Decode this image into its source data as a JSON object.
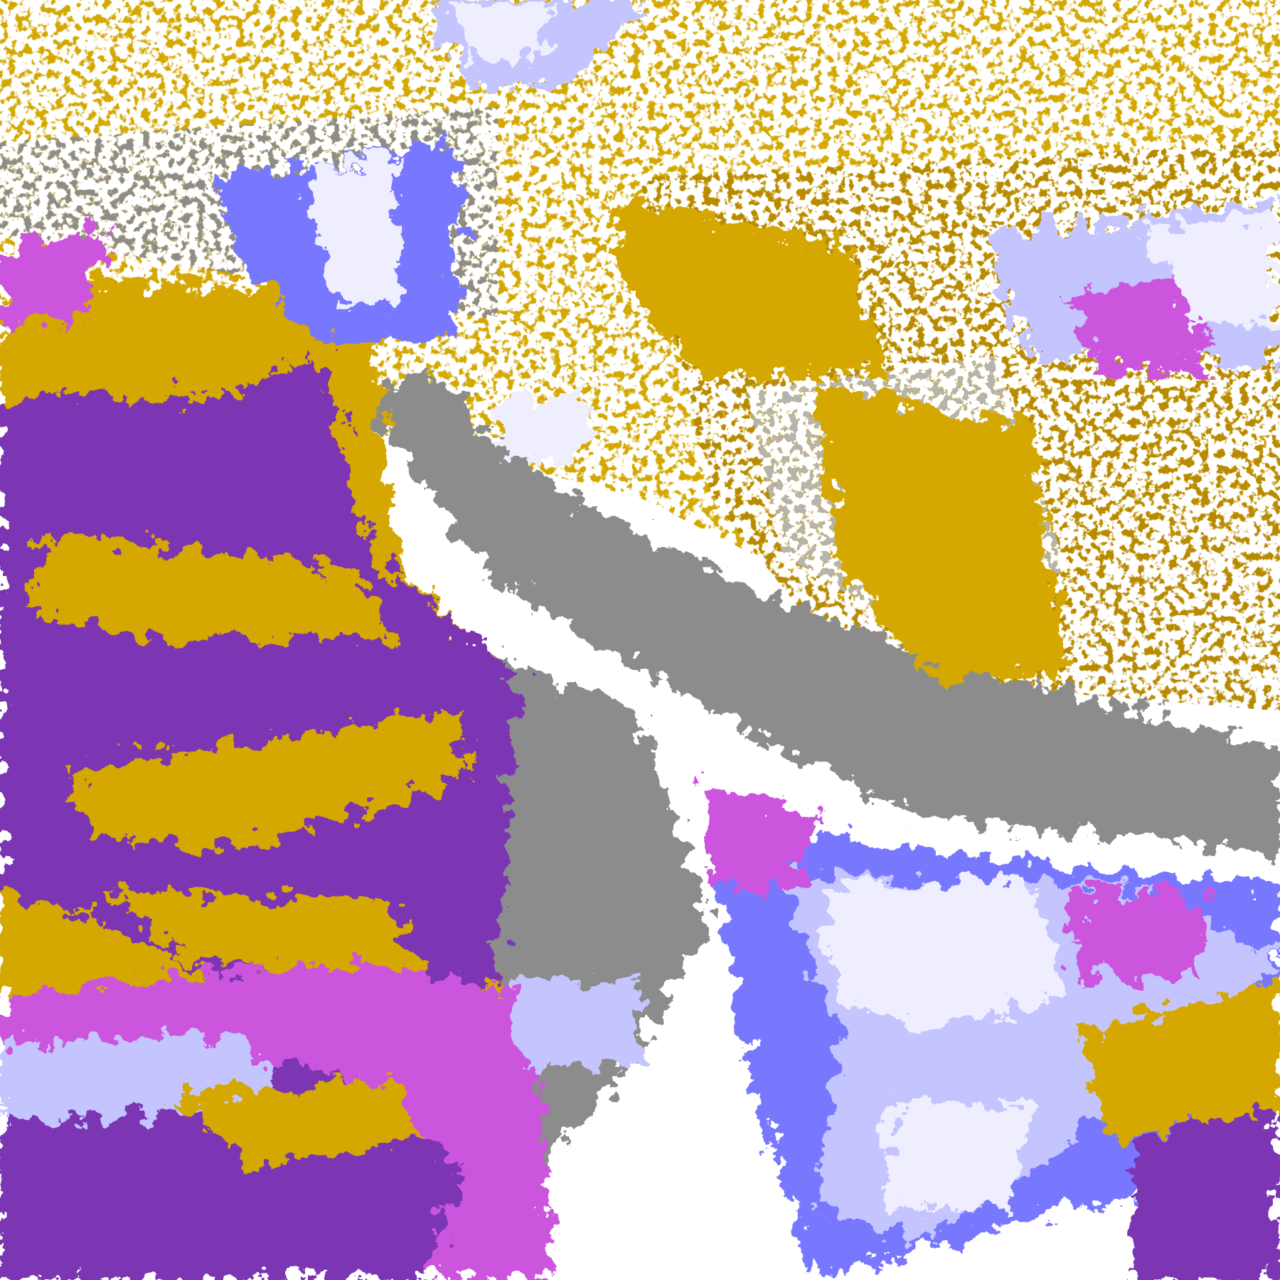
{
  "image": {
    "kind": "false-color satellite cloud classification map",
    "palette": {
      "background": "#ffffff",
      "gold": "#d4a800",
      "dark_gold": "#b88a00",
      "purple": "#7b35b3",
      "magenta": "#cc55dd",
      "blue": "#7878ff",
      "periwinkle": "#c4c4ff",
      "lavender": "#eeeeff",
      "gray": "#8c8c8c",
      "light_gray": "#b4b4b4"
    }
  }
}
